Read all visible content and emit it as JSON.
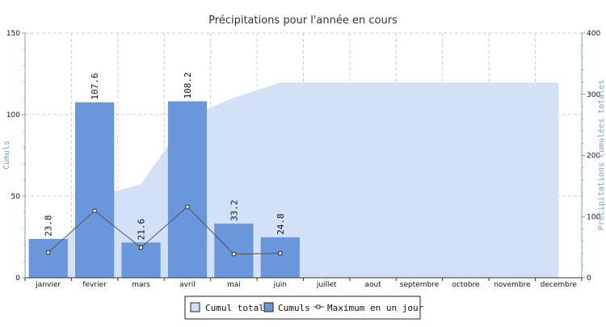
{
  "chart_data": {
    "type": "bar",
    "title": "Précipitations pour l'année en cours",
    "categories": [
      "janvier",
      "fevrier",
      "mars",
      "avril",
      "mai",
      "juin",
      "juillet",
      "aout",
      "septembre",
      "octobre",
      "novembre",
      "decembre"
    ],
    "ylabel_left": "Cumuls",
    "ylabel_right": "Précipitations cumulées totales",
    "ylim_left": [
      0,
      150
    ],
    "ylim_right": [
      0,
      400
    ],
    "yticks_left": [
      "0",
      "50",
      "100",
      "150"
    ],
    "yticks_right": [
      "0",
      "100",
      "200",
      "300",
      "400"
    ],
    "grid": true,
    "legend_position": "bottom-center",
    "series": [
      {
        "name": "Cumul total",
        "kind": "area",
        "axis": "right",
        "color": "#d2e0f8",
        "values": [
          23.8,
          131.4,
          153.0,
          261.2,
          294.4,
          319.2,
          319.2,
          319.2,
          319.2,
          319.2,
          319.2,
          319.2
        ]
      },
      {
        "name": "Cumuls",
        "kind": "bar",
        "axis": "left",
        "color": "#6a96dc",
        "values": [
          23.8,
          107.6,
          21.6,
          108.2,
          33.2,
          24.8,
          null,
          null,
          null,
          null,
          null,
          null
        ],
        "labels": [
          "23.8",
          "107.6",
          "21.6",
          "108.2",
          "33.2",
          "24.8"
        ]
      },
      {
        "name": "Maximum en un jour",
        "kind": "line",
        "axis": "left",
        "color": "#555555",
        "values": [
          15.5,
          41,
          18.5,
          43.5,
          14.5,
          15,
          null,
          null,
          null,
          null,
          null,
          null
        ]
      }
    ],
    "axis_colors": {
      "left": "#7a9bd0",
      "right": "#7a9bd0",
      "bottom": "#333333"
    }
  }
}
